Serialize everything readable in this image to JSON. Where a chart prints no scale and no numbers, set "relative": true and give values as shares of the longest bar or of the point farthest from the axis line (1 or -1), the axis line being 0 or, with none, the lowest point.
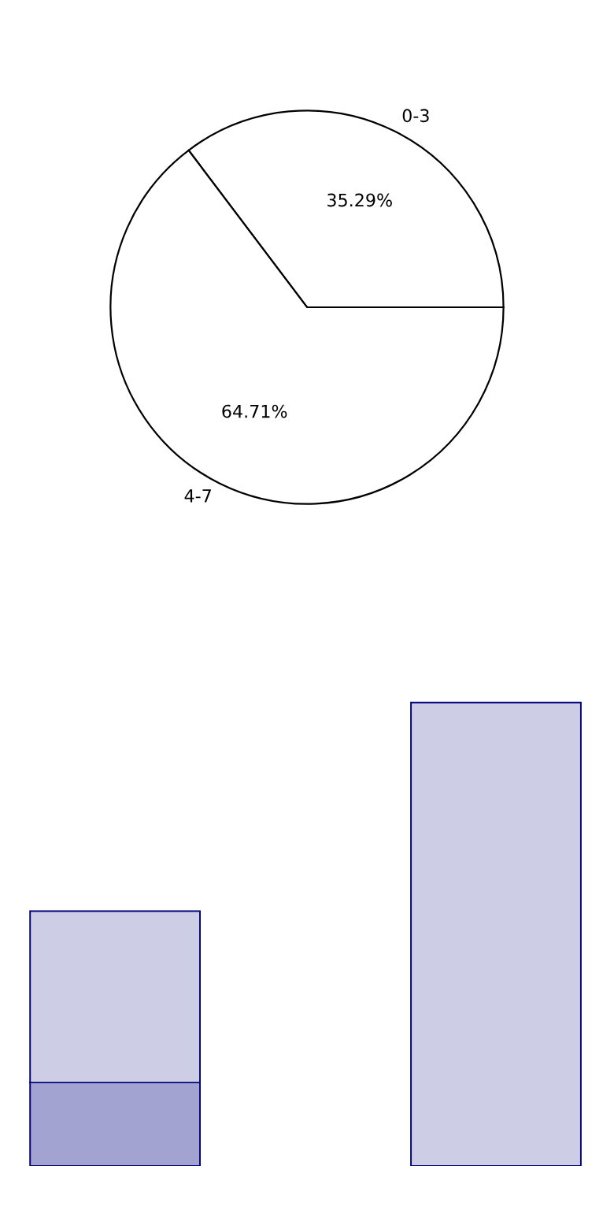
{
  "chart_data": [
    {
      "type": "pie",
      "categories": [
        "0-3",
        "4-7"
      ],
      "values": [
        35.29,
        64.71
      ],
      "colors": [
        "#ffffff",
        "#ffffff"
      ],
      "value_labels": [
        "35.29%",
        "64.71%"
      ]
    },
    {
      "type": "bar",
      "stacked": true,
      "relative": true,
      "categories": [
        null,
        null
      ],
      "series": [
        {
          "color": "#a3a3d1",
          "values": [
            0.18,
            0
          ]
        },
        {
          "color": "#cdcde5",
          "values": [
            0.37,
            1.0
          ]
        }
      ]
    }
  ]
}
